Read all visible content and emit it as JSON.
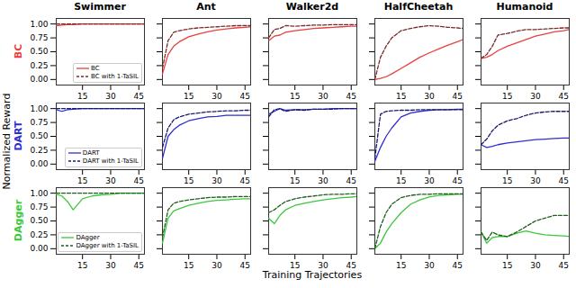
{
  "chart_data": {
    "type": "line",
    "xlabel": "Training Trajectories",
    "ylabel": "Normalized Reward",
    "x": [
      1,
      4,
      7,
      10,
      15,
      20,
      25,
      30,
      35,
      40,
      45,
      48
    ],
    "xlim": [
      1,
      48
    ],
    "xticks": [
      15,
      30,
      45
    ],
    "ylim": [
      -0.1,
      1.1
    ],
    "yticks": [
      {
        "value": 0,
        "label": "0.00"
      },
      {
        "value": 0.25,
        "label": "0.25"
      },
      {
        "value": 0.5,
        "label": "0.50"
      },
      {
        "value": 0.75,
        "label": "0.75"
      },
      {
        "value": 1,
        "label": "1.00"
      }
    ],
    "grid": false,
    "legend": "lower right",
    "columns": [
      "Swimmer",
      "Ant",
      "Walker2d",
      "HalfCheetah",
      "Humanoid"
    ],
    "rows": [
      {
        "label": "BC",
        "color": "#e8403c",
        "series": [
          {
            "name": "BC",
            "color": "#e8403c",
            "line_style": "solid",
            "values": [
              [
                0.97,
                0.98,
                0.99,
                0.99,
                1,
                1,
                1,
                1,
                1,
                1,
                1,
                1
              ],
              [
                0.1,
                0.45,
                0.6,
                0.68,
                0.77,
                0.82,
                0.86,
                0.89,
                0.91,
                0.93,
                0.94,
                0.95
              ],
              [
                0.7,
                0.78,
                0.8,
                0.85,
                0.88,
                0.9,
                0.92,
                0.93,
                0.94,
                0.95,
                0.96,
                0.96
              ],
              [
                0,
                0.02,
                0.05,
                0.1,
                0.2,
                0.3,
                0.4,
                0.48,
                0.55,
                0.62,
                0.68,
                0.72
              ],
              [
                0.38,
                0.4,
                0.45,
                0.52,
                0.6,
                0.66,
                0.72,
                0.78,
                0.82,
                0.86,
                0.88,
                0.9
              ]
            ]
          },
          {
            "name": "BC with 1-TaSIL",
            "color": "#7a2a2a",
            "line_style": "dashed",
            "values": [
              [
                1,
                1,
                1,
                1,
                1,
                1,
                1,
                1,
                1,
                1,
                1,
                1
              ],
              [
                0.2,
                0.7,
                0.85,
                0.88,
                0.91,
                0.93,
                0.94,
                0.95,
                0.96,
                0.97,
                0.97,
                0.97
              ],
              [
                0.75,
                0.9,
                0.92,
                0.97,
                0.96,
                0.97,
                0.98,
                0.98,
                0.99,
                0.99,
                0.99,
                0.99
              ],
              [
                0,
                0.4,
                0.6,
                0.75,
                0.88,
                0.92,
                0.95,
                0.97,
                0.96,
                0.94,
                0.93,
                0.92
              ],
              [
                0.38,
                0.45,
                0.6,
                0.8,
                0.83,
                0.87,
                0.9,
                0.9,
                0.91,
                0.92,
                0.93,
                0.93
              ]
            ]
          }
        ]
      },
      {
        "label": "DART",
        "color": "#2e2ed0",
        "series": [
          {
            "name": "DART",
            "color": "#2e2ed0",
            "line_style": "solid",
            "values": [
              [
                0.98,
                0.95,
                0.98,
                0.99,
                1,
                1,
                1,
                1,
                1,
                1,
                1,
                1
              ],
              [
                0.1,
                0.5,
                0.62,
                0.7,
                0.78,
                0.82,
                0.85,
                0.86,
                0.88,
                0.88,
                0.88,
                0.88
              ],
              [
                0.9,
                0.95,
                1,
                0.97,
                0.98,
                0.98,
                0.99,
                0.99,
                1,
                1,
                1,
                1
              ],
              [
                0.05,
                0.3,
                0.5,
                0.65,
                0.85,
                0.92,
                0.95,
                0.97,
                0.98,
                0.98,
                0.99,
                0.99
              ],
              [
                0.35,
                0.3,
                0.32,
                0.35,
                0.38,
                0.4,
                0.42,
                0.44,
                0.45,
                0.46,
                0.47,
                0.47
              ]
            ]
          },
          {
            "name": "DART with 1-TaSIL",
            "color": "#1a1a6e",
            "line_style": "dashed",
            "values": [
              [
                1,
                1,
                1,
                1,
                1,
                1,
                1,
                1,
                1,
                1,
                1,
                1
              ],
              [
                0.3,
                0.65,
                0.8,
                0.85,
                0.9,
                0.92,
                0.94,
                0.95,
                0.96,
                0.96,
                0.97,
                0.97
              ],
              [
                0.85,
                0.98,
                1,
                0.95,
                0.98,
                0.97,
                0.99,
                0.99,
                0.99,
                1,
                1,
                1
              ],
              [
                0.1,
                0.9,
                0.95,
                0.96,
                0.97,
                0.97,
                0.98,
                0.98,
                0.98,
                0.98,
                0.98,
                0.98
              ],
              [
                0.35,
                0.45,
                0.6,
                0.7,
                0.78,
                0.82,
                0.88,
                0.92,
                0.94,
                0.95,
                0.95,
                0.95
              ]
            ]
          }
        ]
      },
      {
        "label": "DAgger",
        "color": "#3cc83c",
        "series": [
          {
            "name": "DAgger",
            "color": "#3cc83c",
            "line_style": "solid",
            "values": [
              [
                0.98,
                0.95,
                0.85,
                0.7,
                0.9,
                0.95,
                0.97,
                0.98,
                1,
                1,
                1,
                1
              ],
              [
                0.1,
                0.55,
                0.68,
                0.72,
                0.78,
                0.82,
                0.85,
                0.87,
                0.88,
                0.89,
                0.9,
                0.9
              ],
              [
                0.55,
                0.45,
                0.6,
                0.7,
                0.78,
                0.82,
                0.85,
                0.88,
                0.9,
                0.92,
                0.93,
                0.94
              ],
              [
                0,
                0.1,
                0.3,
                0.45,
                0.65,
                0.8,
                0.88,
                0.93,
                0.96,
                0.97,
                0.98,
                0.98
              ],
              [
                0.3,
                0.1,
                0.2,
                0.22,
                0.22,
                0.28,
                0.32,
                0.28,
                0.25,
                0.24,
                0.23,
                0.22
              ]
            ]
          },
          {
            "name": "DAgger with 1-TaSIL",
            "color": "#1e5e1e",
            "line_style": "dashed",
            "values": [
              [
                1,
                1,
                1,
                1,
                1,
                1,
                1,
                1,
                1,
                1,
                1,
                1
              ],
              [
                0.2,
                0.7,
                0.82,
                0.85,
                0.88,
                0.9,
                0.92,
                0.93,
                0.93,
                0.94,
                0.94,
                0.94
              ],
              [
                0.65,
                0.7,
                0.78,
                0.85,
                0.9,
                0.93,
                0.95,
                0.97,
                0.98,
                0.98,
                0.99,
                0.99
              ],
              [
                0,
                0.4,
                0.65,
                0.8,
                0.92,
                0.96,
                0.98,
                0.98,
                0.99,
                0.99,
                0.99,
                0.99
              ],
              [
                0.3,
                0.15,
                0.3,
                0.25,
                0.22,
                0.3,
                0.4,
                0.5,
                0.55,
                0.6,
                0.6,
                0.6
              ]
            ]
          }
        ]
      }
    ]
  }
}
